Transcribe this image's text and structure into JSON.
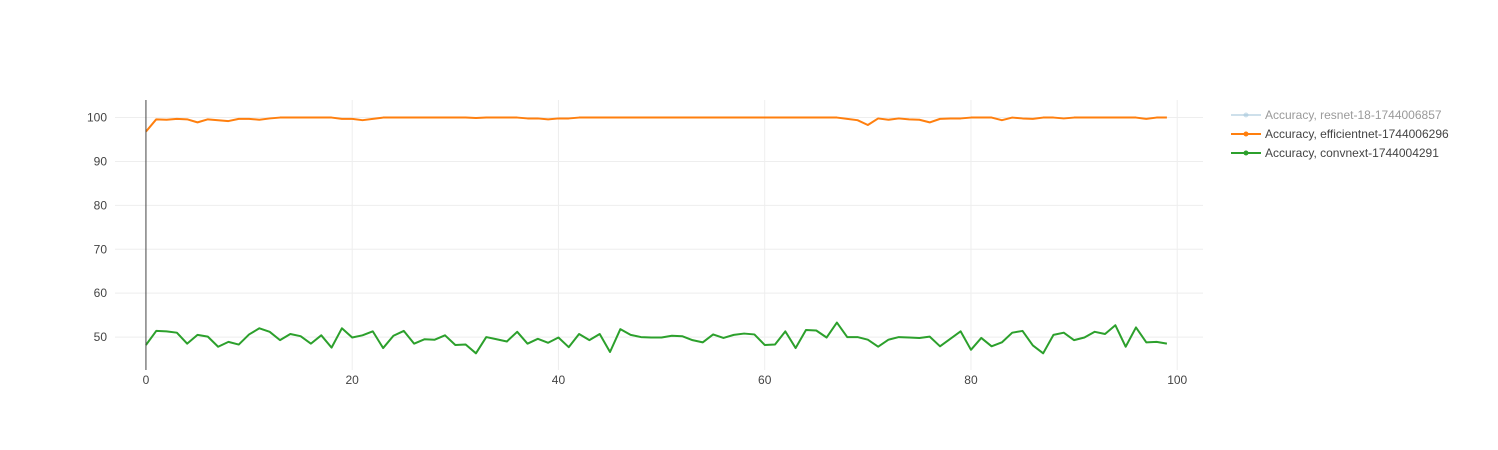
{
  "chart_data": {
    "type": "line",
    "title": "",
    "xlabel": "",
    "ylabel": "",
    "xlim": [
      -3,
      102.5
    ],
    "ylim": [
      42.5,
      104
    ],
    "xticks": [
      0,
      20,
      40,
      60,
      80,
      100
    ],
    "yticks": [
      50,
      60,
      70,
      80,
      90,
      100
    ],
    "grid": true,
    "legend_position": "top-right",
    "series": [
      {
        "name": "Accuracy, resnet-18-1744006857",
        "color": "#9fc3d9",
        "visible": false,
        "x": [],
        "values": []
      },
      {
        "name": "Accuracy, efficientnet-1744006296",
        "color": "#ff7f0e",
        "visible": true,
        "x": [
          0,
          1,
          2,
          3,
          4,
          5,
          6,
          7,
          8,
          9,
          10,
          11,
          12,
          13,
          14,
          15,
          16,
          17,
          18,
          19,
          20,
          21,
          22,
          23,
          24,
          25,
          26,
          27,
          28,
          29,
          30,
          31,
          32,
          33,
          34,
          35,
          36,
          37,
          38,
          39,
          40,
          41,
          42,
          43,
          44,
          45,
          46,
          47,
          48,
          49,
          50,
          51,
          52,
          53,
          54,
          55,
          56,
          57,
          58,
          59,
          60,
          61,
          62,
          63,
          64,
          65,
          66,
          67,
          68,
          69,
          70,
          71,
          72,
          73,
          74,
          75,
          76,
          77,
          78,
          79,
          80,
          81,
          82,
          83,
          84,
          85,
          86,
          87,
          88,
          89,
          90,
          91,
          92,
          93,
          94,
          95,
          96,
          97,
          98,
          99
        ],
        "values": [
          96.8,
          99.6,
          99.5,
          99.7,
          99.6,
          98.9,
          99.6,
          99.4,
          99.2,
          99.7,
          99.7,
          99.5,
          99.8,
          100,
          100,
          100,
          100,
          100,
          100,
          99.7,
          99.7,
          99.4,
          99.7,
          100,
          100,
          100,
          100,
          100,
          100,
          100,
          100,
          100,
          99.9,
          100,
          100,
          100,
          100,
          99.8,
          99.8,
          99.6,
          99.8,
          99.8,
          100,
          100,
          100,
          100,
          100,
          100,
          100,
          100,
          100,
          100,
          100,
          100,
          100,
          100,
          100,
          100,
          100,
          100,
          100,
          100,
          100,
          100,
          100,
          100,
          100,
          100,
          99.7,
          99.4,
          98.3,
          99.8,
          99.5,
          99.8,
          99.6,
          99.5,
          98.9,
          99.7,
          99.8,
          99.8,
          100,
          100,
          100,
          99.4,
          100,
          99.8,
          99.7,
          100,
          100,
          99.8,
          100,
          100,
          100,
          100,
          100,
          100,
          100,
          99.7,
          100,
          100
        ]
      },
      {
        "name": "Accuracy, convnext-1744004291",
        "color": "#2ca02c",
        "visible": true,
        "x": [
          0,
          1,
          2,
          3,
          4,
          5,
          6,
          7,
          8,
          9,
          10,
          11,
          12,
          13,
          14,
          15,
          16,
          17,
          18,
          19,
          20,
          21,
          22,
          23,
          24,
          25,
          26,
          27,
          28,
          29,
          30,
          31,
          32,
          33,
          34,
          35,
          36,
          37,
          38,
          39,
          40,
          41,
          42,
          43,
          44,
          45,
          46,
          47,
          48,
          49,
          50,
          51,
          52,
          53,
          54,
          55,
          56,
          57,
          58,
          59,
          60,
          61,
          62,
          63,
          64,
          65,
          66,
          67,
          68,
          69,
          70,
          71,
          72,
          73,
          74,
          75,
          76,
          77,
          78,
          79,
          80,
          81,
          82,
          83,
          84,
          85,
          86,
          87,
          88,
          89,
          90,
          91,
          92,
          93,
          94,
          95,
          96,
          97,
          98,
          99
        ],
        "values": [
          48.2,
          51.4,
          51.3,
          51.0,
          48.5,
          50.5,
          50.1,
          47.8,
          48.9,
          48.3,
          50.6,
          52.0,
          51.2,
          49.3,
          50.7,
          50.2,
          48.5,
          50.4,
          47.6,
          52.0,
          49.9,
          50.4,
          51.3,
          47.5,
          50.3,
          51.4,
          48.5,
          49.5,
          49.4,
          50.4,
          48.2,
          48.3,
          46.3,
          50.0,
          49.5,
          49.0,
          51.2,
          48.5,
          49.6,
          48.7,
          49.9,
          47.7,
          50.7,
          49.3,
          50.7,
          46.6,
          51.8,
          50.5,
          50.0,
          49.9,
          49.9,
          50.3,
          50.2,
          49.3,
          48.8,
          50.6,
          49.8,
          50.5,
          50.8,
          50.6,
          48.2,
          48.3,
          51.3,
          47.5,
          51.6,
          51.5,
          49.9,
          53.3,
          50.0,
          50.0,
          49.4,
          47.8,
          49.4,
          50.0,
          49.9,
          49.8,
          50.1,
          47.9,
          49.6,
          51.3,
          47.1,
          49.8,
          47.9,
          48.8,
          51.0,
          51.4,
          48.1,
          46.3,
          50.5,
          51.0,
          49.3,
          49.9,
          51.2,
          50.7,
          52.7,
          47.8,
          52.2,
          48.8,
          48.9,
          48.5
        ]
      }
    ]
  }
}
